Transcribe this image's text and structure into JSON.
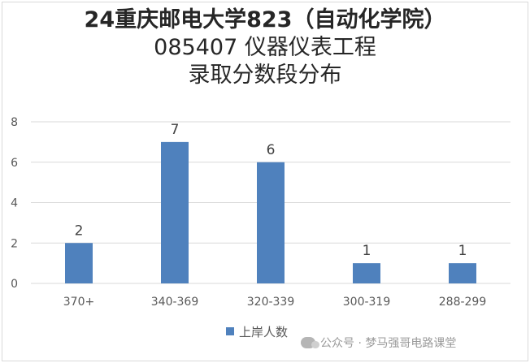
{
  "chart_data": {
    "type": "bar",
    "title_lines": [
      "24重庆邮电大学823（自动化学院）",
      "085407 仪器仪表工程",
      "录取分数段分布"
    ],
    "categories": [
      "370+",
      "340-369",
      "320-339",
      "300-319",
      "288-299"
    ],
    "series": [
      {
        "name": "上岸人数",
        "values": [
          2,
          7,
          6,
          1,
          1
        ]
      }
    ],
    "y_ticks": [
      0,
      2,
      4,
      6,
      8
    ],
    "ylim": [
      0,
      8
    ],
    "grid": true,
    "legend": "bottom",
    "data_labels": true,
    "bar_color": "#4f81bd",
    "grid_color": "#d9d9d9"
  },
  "watermark": {
    "icon": "wechat-icon",
    "text": "公众号 · 梦马强哥电路课堂"
  }
}
